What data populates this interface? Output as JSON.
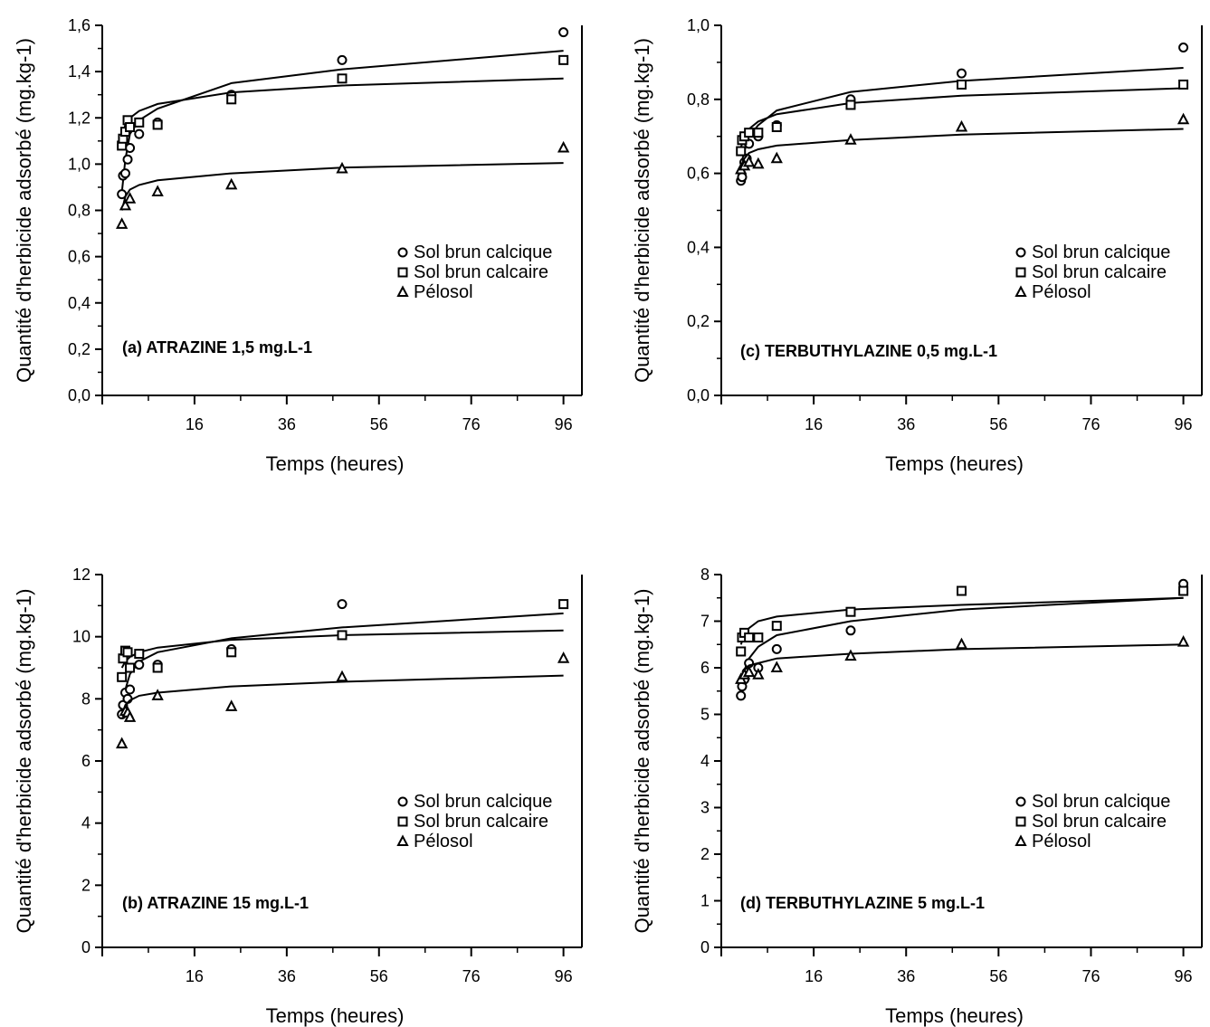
{
  "chart_data": [
    {
      "panel": "a",
      "type": "scatter",
      "title": "(a) ATRAZINE 1,5 mg.L-1",
      "xlabel": "Temps (heures)",
      "ylabel": "Quantité d'herbicide adsorbé (mg.kg-1)",
      "xlim": [
        -4,
        100
      ],
      "ylim": [
        0,
        1.6
      ],
      "xticks": [
        16,
        36,
        56,
        76,
        96
      ],
      "xtick_labels": [
        "16",
        "36",
        "56",
        "76",
        "96"
      ],
      "yticks": [
        0,
        0.2,
        0.4,
        0.6,
        0.8,
        1.0,
        1.2,
        1.4,
        1.6
      ],
      "ytick_labels": [
        "0,0",
        "0,2",
        "0,4",
        "0,6",
        "0,8",
        "1,0",
        "1,2",
        "1,4",
        "1,6"
      ],
      "legend": [
        "Sol brun calcique",
        "Sol brun calcaire",
        "Pélosol"
      ],
      "series": [
        {
          "name": "Sol brun calcique",
          "marker": "circle",
          "x": [
            0.25,
            0.5,
            1,
            1.5,
            2,
            4,
            8,
            24,
            48,
            96
          ],
          "y": [
            0.87,
            0.95,
            0.96,
            1.02,
            1.07,
            1.13,
            1.18,
            1.3,
            1.45,
            1.57
          ],
          "fit_x": [
            0.25,
            1,
            2,
            4,
            8,
            24,
            48,
            96
          ],
          "fit_y": [
            0.88,
            1.02,
            1.13,
            1.19,
            1.24,
            1.35,
            1.41,
            1.49
          ]
        },
        {
          "name": "Sol brun calcaire",
          "marker": "square",
          "x": [
            0.25,
            0.5,
            1,
            1.5,
            2,
            4,
            8,
            24,
            48,
            96
          ],
          "y": [
            1.08,
            1.11,
            1.14,
            1.19,
            1.16,
            1.18,
            1.17,
            1.28,
            1.37,
            1.45
          ],
          "fit_x": [
            0.25,
            1,
            2,
            4,
            8,
            24,
            48,
            96
          ],
          "fit_y": [
            1.12,
            1.17,
            1.2,
            1.23,
            1.26,
            1.31,
            1.34,
            1.37
          ]
        },
        {
          "name": "Pélosol",
          "marker": "triangle",
          "x": [
            0.25,
            1,
            2,
            8,
            24,
            48,
            96
          ],
          "y": [
            0.74,
            0.82,
            0.85,
            0.88,
            0.91,
            0.98,
            1.07
          ],
          "fit_x": [
            0.25,
            1,
            2,
            4,
            8,
            24,
            48,
            96
          ],
          "fit_y": [
            0.8,
            0.86,
            0.89,
            0.91,
            0.93,
            0.96,
            0.985,
            1.005
          ]
        }
      ]
    },
    {
      "panel": "b",
      "type": "scatter",
      "title": "(b) ATRAZINE 15 mg.L-1",
      "xlabel": "Temps (heures)",
      "ylabel": "Quantité d'herbicide adsorbé (mg.kg-1)",
      "xlim": [
        -4,
        100
      ],
      "ylim": [
        0,
        12
      ],
      "xticks": [
        16,
        36,
        56,
        76,
        96
      ],
      "xtick_labels": [
        "16",
        "36",
        "56",
        "76",
        "96"
      ],
      "yticks": [
        0,
        2,
        4,
        6,
        8,
        10,
        12
      ],
      "ytick_labels": [
        "0",
        "2",
        "4",
        "6",
        "8",
        "10",
        "12"
      ],
      "legend": [
        "Sol brun calcique",
        "Sol brun calcaire",
        "Pélosol"
      ],
      "series": [
        {
          "name": "Sol brun calcique",
          "marker": "circle",
          "x": [
            0.25,
            0.5,
            1,
            1.5,
            2,
            4,
            8,
            24,
            48
          ],
          "y": [
            7.5,
            7.8,
            8.2,
            8.0,
            8.3,
            9.1,
            9.1,
            9.6,
            11.05
          ],
          "fit_x": [
            0.25,
            1,
            2,
            4,
            8,
            24,
            48,
            96
          ],
          "fit_y": [
            7.6,
            8.3,
            8.8,
            9.2,
            9.5,
            9.95,
            10.3,
            10.75
          ]
        },
        {
          "name": "Sol brun calcaire",
          "marker": "square",
          "x": [
            0.25,
            0.5,
            1,
            1.5,
            2,
            4,
            8,
            24,
            48,
            96
          ],
          "y": [
            8.7,
            9.3,
            9.55,
            9.5,
            9.0,
            9.45,
            9.0,
            9.5,
            10.05,
            11.05
          ],
          "fit_x": [
            0.25,
            1,
            2,
            4,
            8,
            24,
            48,
            96
          ],
          "fit_y": [
            9.0,
            9.2,
            9.35,
            9.5,
            9.65,
            9.9,
            10.05,
            10.2
          ]
        },
        {
          "name": "Pélosol",
          "marker": "triangle",
          "x": [
            0.25,
            1,
            1.5,
            2,
            8,
            24,
            48,
            96
          ],
          "y": [
            6.55,
            7.6,
            7.55,
            7.4,
            8.1,
            7.75,
            8.7,
            9.3
          ],
          "fit_x": [
            0.25,
            1,
            2,
            4,
            8,
            24,
            48,
            96
          ],
          "fit_y": [
            7.5,
            7.8,
            7.95,
            8.1,
            8.2,
            8.4,
            8.55,
            8.75
          ]
        }
      ]
    },
    {
      "panel": "c",
      "type": "scatter",
      "title": "(c) TERBUTHYLAZINE 0,5 mg.L-1",
      "xlabel": "Temps (heures)",
      "ylabel": "Quantité d'herbicide adsorbé (mg.kg-1)",
      "xlim": [
        -4,
        100
      ],
      "ylim": [
        0,
        1.0
      ],
      "xticks": [
        16,
        36,
        56,
        76,
        96
      ],
      "xtick_labels": [
        "16",
        "36",
        "56",
        "76",
        "96"
      ],
      "yticks": [
        0,
        0.2,
        0.4,
        0.6,
        0.8,
        1.0
      ],
      "ytick_labels": [
        "0,0",
        "0,2",
        "0,4",
        "0,6",
        "0,8",
        "1,0"
      ],
      "legend": [
        "Sol brun calcique",
        "Sol brun calcaire",
        "Pélosol"
      ],
      "series": [
        {
          "name": "Sol brun calcique",
          "marker": "circle",
          "x": [
            0.25,
            0.5,
            1,
            1.5,
            2,
            4,
            8,
            24,
            48,
            96
          ],
          "y": [
            0.58,
            0.59,
            0.63,
            0.64,
            0.68,
            0.7,
            0.73,
            0.8,
            0.87,
            0.94
          ],
          "fit_x": [
            0.25,
            1,
            2,
            4,
            8,
            24,
            48,
            96
          ],
          "fit_y": [
            0.59,
            0.66,
            0.7,
            0.73,
            0.77,
            0.82,
            0.85,
            0.885
          ]
        },
        {
          "name": "Sol brun calcaire",
          "marker": "square",
          "x": [
            0.25,
            0.5,
            1,
            2,
            4,
            8,
            24,
            48,
            96
          ],
          "y": [
            0.66,
            0.69,
            0.7,
            0.71,
            0.71,
            0.725,
            0.785,
            0.84,
            0.84
          ],
          "fit_x": [
            0.25,
            1,
            2,
            4,
            8,
            24,
            48,
            96
          ],
          "fit_y": [
            0.67,
            0.7,
            0.72,
            0.74,
            0.76,
            0.79,
            0.81,
            0.83
          ]
        },
        {
          "name": "Pélosol",
          "marker": "triangle",
          "x": [
            0.25,
            1,
            2,
            4,
            8,
            24,
            48,
            96
          ],
          "y": [
            0.61,
            0.62,
            0.63,
            0.625,
            0.64,
            0.69,
            0.725,
            0.745
          ],
          "fit_x": [
            0.25,
            1,
            2,
            4,
            8,
            24,
            48,
            96
          ],
          "fit_y": [
            0.62,
            0.64,
            0.655,
            0.665,
            0.675,
            0.69,
            0.705,
            0.72
          ]
        }
      ]
    },
    {
      "panel": "d",
      "type": "scatter",
      "title": "(d) TERBUTHYLAZINE 5 mg.L-1",
      "xlabel": "Temps (heures)",
      "ylabel": "Quantité d'herbicide adsorbé (mg.kg-1)",
      "xlim": [
        -4,
        100
      ],
      "ylim": [
        0,
        8
      ],
      "xticks": [
        16,
        36,
        56,
        76,
        96
      ],
      "xtick_labels": [
        "16",
        "36",
        "56",
        "76",
        "96"
      ],
      "yticks": [
        0,
        1,
        2,
        3,
        4,
        5,
        6,
        7,
        8
      ],
      "ytick_labels": [
        "0",
        "1",
        "2",
        "3",
        "4",
        "5",
        "6",
        "7",
        "8"
      ],
      "legend": [
        "Sol brun calcique",
        "Sol brun calcaire",
        "Pélosol"
      ],
      "series": [
        {
          "name": "Sol brun calcique",
          "marker": "circle",
          "x": [
            0.25,
            0.5,
            1,
            1.5,
            2,
            4,
            8,
            24,
            48,
            96
          ],
          "y": [
            5.4,
            5.6,
            5.75,
            5.9,
            6.1,
            6.0,
            6.4,
            6.8,
            7.65,
            7.8
          ],
          "fit_x": [
            0.25,
            1,
            2,
            4,
            8,
            24,
            48,
            96
          ],
          "fit_y": [
            5.5,
            5.95,
            6.2,
            6.45,
            6.7,
            7.0,
            7.25,
            7.5
          ]
        },
        {
          "name": "Sol brun calcaire",
          "marker": "square",
          "x": [
            0.25,
            0.5,
            1,
            2,
            4,
            8,
            24,
            48,
            96
          ],
          "y": [
            6.35,
            6.65,
            6.75,
            6.65,
            6.65,
            6.9,
            7.2,
            7.65,
            7.65
          ],
          "fit_x": [
            0.25,
            1,
            2,
            4,
            8,
            24,
            48,
            96
          ],
          "fit_y": [
            6.5,
            6.7,
            6.85,
            7.0,
            7.1,
            7.25,
            7.35,
            7.5
          ]
        },
        {
          "name": "Pélosol",
          "marker": "triangle",
          "x": [
            0.25,
            1,
            2,
            4,
            8,
            24,
            48,
            96
          ],
          "y": [
            5.75,
            5.85,
            5.9,
            5.85,
            6.0,
            6.25,
            6.5,
            6.55
          ],
          "fit_x": [
            0.25,
            1,
            2,
            4,
            8,
            24,
            48,
            96
          ],
          "fit_y": [
            5.8,
            5.95,
            6.05,
            6.1,
            6.2,
            6.3,
            6.4,
            6.5
          ]
        }
      ]
    }
  ]
}
